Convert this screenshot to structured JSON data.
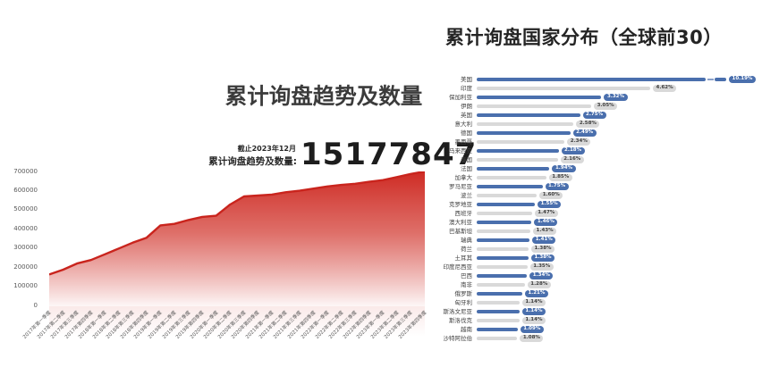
{
  "chart_data": [
    {
      "type": "area",
      "title": "累计询盘趋势及数量",
      "as_of_label": "截止2023年12月",
      "total_label": "累计询盘趋势及数量:",
      "total_value": "15177847",
      "x": [
        "2017年第一季度",
        "2017年第二季度",
        "2017年第三季度",
        "2017年第四季度",
        "2018年第一季度",
        "2018年第二季度",
        "2018年第三季度",
        "2018年第四季度",
        "2019年第一季度",
        "2019年第二季度",
        "2019年第三季度",
        "2019年第四季度",
        "2020年第一季度",
        "2020年第二季度",
        "2020年第三季度",
        "2020年第四季度",
        "2021年第一季度",
        "2021年第二季度",
        "2021年第三季度",
        "2021年第四季度",
        "2022年第一季度",
        "2022年第二季度",
        "2022年第三季度",
        "2022年第四季度",
        "2023年第一季度",
        "2023年第二季度",
        "2023年第三季度",
        "2023年第四季度"
      ],
      "values": [
        165000,
        190000,
        222000,
        240000,
        270000,
        300000,
        330000,
        356000,
        420000,
        428000,
        448000,
        464000,
        470000,
        528000,
        570000,
        575000,
        580000,
        592000,
        600000,
        611000,
        622000,
        630000,
        636000,
        646000,
        655000,
        671000,
        687000,
        700000
      ],
      "ylim": [
        0,
        700000
      ],
      "yticks": [
        700000,
        600000,
        500000,
        400000,
        300000,
        200000,
        100000,
        0
      ],
      "grid": false,
      "legend": null,
      "colors": {
        "line": "#c9241d",
        "fill_top": "#ce2b24",
        "fill_bottom": "#fdf4f3"
      }
    },
    {
      "type": "bar",
      "orientation": "horizontal",
      "title": "累计询盘国家分布（全球前30）",
      "unit": "%",
      "categories": [
        "美国",
        "印度",
        "保加利亚",
        "伊朗",
        "英国",
        "意大利",
        "德国",
        "墨西哥",
        "马来西亚",
        "泰国",
        "法国",
        "加拿大",
        "罗马尼亚",
        "波兰",
        "克罗地亚",
        "西班牙",
        "澳大利亚",
        "巴基斯坦",
        "瑞典",
        "荷兰",
        "土耳其",
        "印度尼西亚",
        "巴西",
        "南非",
        "俄罗斯",
        "匈牙利",
        "斯洛文尼亚",
        "斯洛伐克",
        "越南",
        "沙特阿拉伯"
      ],
      "values": [
        10.19,
        4.62,
        3.32,
        3.05,
        2.75,
        2.58,
        2.49,
        2.34,
        2.18,
        2.16,
        1.94,
        1.85,
        1.75,
        1.6,
        1.55,
        1.47,
        1.46,
        1.43,
        1.41,
        1.38,
        1.38,
        1.35,
        1.34,
        1.28,
        1.21,
        1.14,
        1.14,
        1.14,
        1.09,
        1.08
      ],
      "value_labels": [
        "10.19%",
        "4.62%",
        "3.32%",
        "3.05%",
        "2.75%",
        "2.58%",
        "2.49%",
        "2.34%",
        "2.18%",
        "2.16%",
        "1.94%",
        "1.85%",
        "1.75%",
        "1.60%",
        "1.55%",
        "1.47%",
        "1.46%",
        "1.43%",
        "1.41%",
        "1.38%",
        "1.38%",
        "1.35%",
        "1.34%",
        "1.28%",
        "1.21%",
        "1.14%",
        "1.14%",
        "1.14%",
        "1.09%",
        "1.08%"
      ],
      "truncated_category": "美国",
      "grid": false,
      "legend": null,
      "colors": {
        "bar_primary": "#4a6fad",
        "bar_secondary": "#d9d9d9",
        "badge_primary_text": "#ffffff",
        "badge_secondary_text": "#3f3f3f",
        "break_mark": "#8aa0c9"
      }
    }
  ]
}
